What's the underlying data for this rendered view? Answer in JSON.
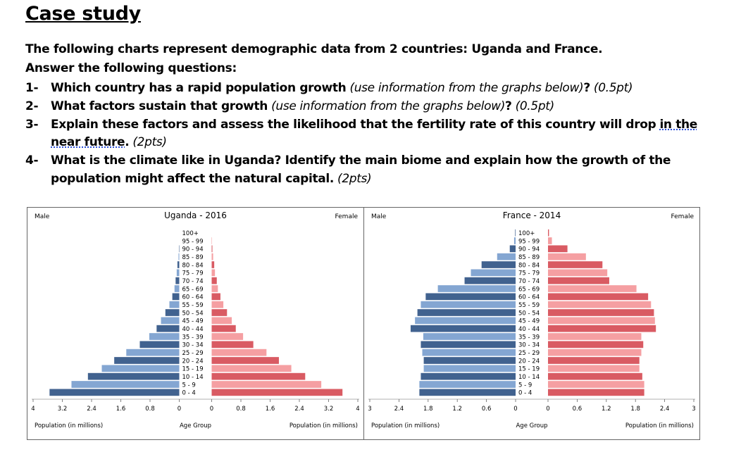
{
  "heading": "Case study",
  "intro": {
    "line1": "The following charts represent demographic data from 2 countries: Uganda and France.",
    "line2": "Answer the following questions:"
  },
  "questions": [
    {
      "num": "1-",
      "bold": "Which country has a rapid population growth",
      "italic": "(use information from the graphs below)",
      "bold2": "?",
      "italic2": "(0.5pt)"
    },
    {
      "num": "2-",
      "bold": "What factors sustain that growth",
      "italic": "(use information from the graphs below)",
      "bold2": "?",
      "italic2": "(0.5pt)"
    },
    {
      "num": "3-",
      "bold": "Explain these factors and assess the likelihood that the fertility rate of this country will drop",
      "underlined": "in the",
      "line2_underlined": "near future",
      "line2_bold": ".",
      "line2_italic": "(2pts)"
    },
    {
      "num": "4-",
      "bold": "What is the climate like in Uganda? Identify the main biome and explain how the growth of the",
      "line2_bold": "population might affect the natural capital.",
      "line2_italic": "(2pts)"
    }
  ],
  "colors": {
    "male_dark": "#41628f",
    "male_light": "#84a6d2",
    "female_dark": "#d95b63",
    "female_light": "#f59fa2"
  },
  "chart_data": [
    {
      "type": "bar",
      "orientation": "horizontal-pyramid",
      "title": "Uganda - 2016",
      "left_label": "Male",
      "right_label": "Female",
      "xlabel_left": "Population (in millions)",
      "xlabel_center": "Age Group",
      "xlabel_right": "Population (in millions)",
      "xlim": [
        0,
        4
      ],
      "ticks_left": [
        "4",
        "3.2",
        "2.4",
        "1.6",
        "0.8",
        "0"
      ],
      "ticks_right": [
        "0",
        "0.8",
        "1.6",
        "2.4",
        "3.2",
        "4"
      ],
      "categories": [
        "100+",
        "95 - 99",
        "90 - 94",
        "85 - 89",
        "80 - 84",
        "75 - 79",
        "70 - 74",
        "65 - 69",
        "60 - 64",
        "55 - 59",
        "50 - 54",
        "45 - 49",
        "40 - 44",
        "35 - 39",
        "30 - 34",
        "25 - 29",
        "20 - 24",
        "15 - 19",
        "10 - 14",
        "5 - 9",
        "0 - 4"
      ],
      "series": [
        {
          "name": "Male",
          "values": [
            0,
            0,
            0.01,
            0.02,
            0.05,
            0.07,
            0.1,
            0.13,
            0.19,
            0.27,
            0.38,
            0.5,
            0.62,
            0.82,
            1.08,
            1.45,
            1.78,
            2.12,
            2.5,
            2.95,
            3.55
          ]
        },
        {
          "name": "Female",
          "values": [
            0,
            0.01,
            0.02,
            0.04,
            0.07,
            0.09,
            0.14,
            0.17,
            0.24,
            0.32,
            0.42,
            0.55,
            0.66,
            0.86,
            1.14,
            1.5,
            1.84,
            2.18,
            2.56,
            3.0,
            3.58
          ]
        }
      ]
    },
    {
      "type": "bar",
      "orientation": "horizontal-pyramid",
      "title": "France - 2014",
      "left_label": "Male",
      "right_label": "Female",
      "xlabel_left": "Population (in millions)",
      "xlabel_center": "Age Group",
      "xlabel_right": "Population (in millions)",
      "xlim": [
        0,
        3
      ],
      "ticks_left": [
        "3",
        "2.4",
        "1.8",
        "1.2",
        "0.6",
        "0"
      ],
      "ticks_right": [
        "0",
        "0.6",
        "1.2",
        "1.8",
        "2.4",
        "3"
      ],
      "categories": [
        "100+",
        "95 - 99",
        "90 - 94",
        "85 - 89",
        "80 - 84",
        "75 - 79",
        "70 - 74",
        "65 - 69",
        "60 - 64",
        "55 - 59",
        "50 - 54",
        "45 - 49",
        "40 - 44",
        "35 - 39",
        "30 - 34",
        "25 - 29",
        "20 - 24",
        "15 - 19",
        "10 - 14",
        "5 - 9",
        "0 - 4"
      ],
      "series": [
        {
          "name": "Male",
          "values": [
            0.01,
            0.03,
            0.12,
            0.38,
            0.7,
            0.92,
            1.05,
            1.6,
            1.85,
            1.95,
            2.02,
            2.07,
            2.16,
            1.9,
            1.95,
            1.92,
            1.89,
            1.89,
            1.95,
            1.98,
            1.98
          ]
        },
        {
          "name": "Female",
          "values": [
            0.02,
            0.08,
            0.4,
            0.78,
            1.12,
            1.22,
            1.26,
            1.82,
            2.06,
            2.12,
            2.18,
            2.2,
            2.22,
            1.92,
            1.96,
            1.92,
            1.88,
            1.88,
            1.94,
            1.98,
            1.98
          ]
        }
      ]
    }
  ]
}
